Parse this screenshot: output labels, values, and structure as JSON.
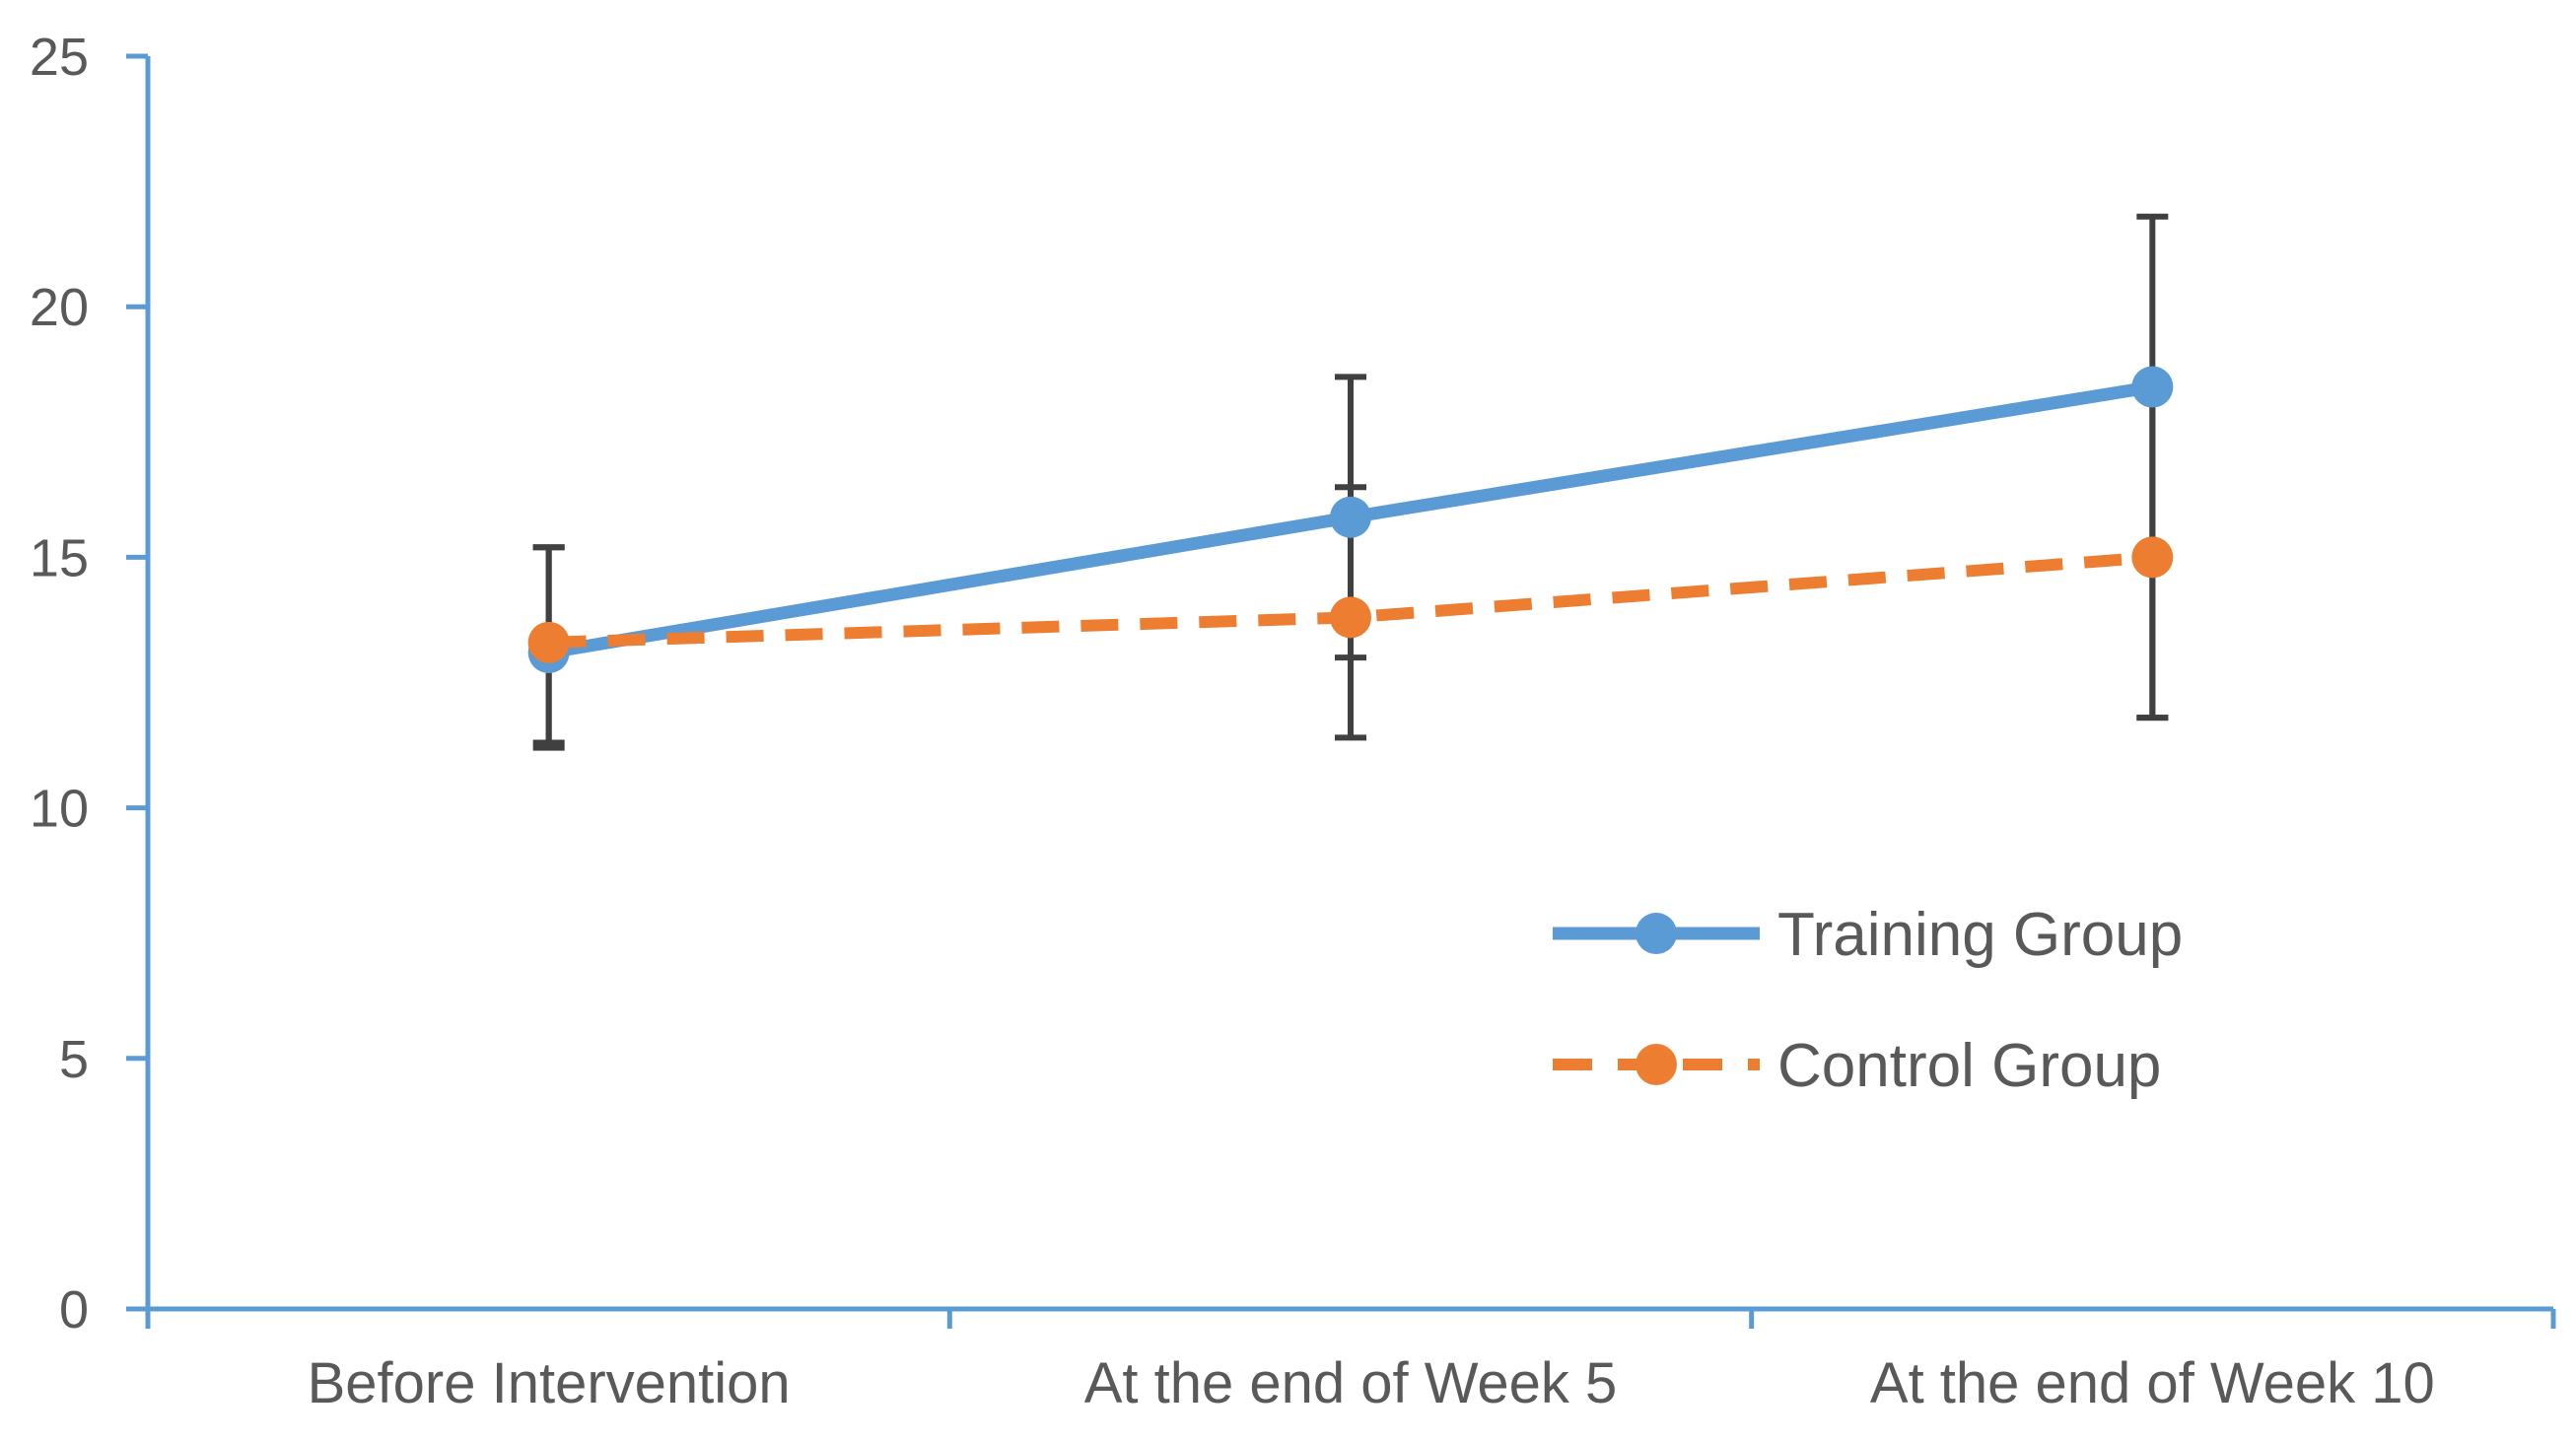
{
  "chart_data": {
    "type": "line",
    "title": "",
    "xlabel": "",
    "ylabel": "",
    "categories": [
      "Before Intervention",
      "At the end of Week 5",
      "At the end of Week 10"
    ],
    "ylim": [
      0,
      25
    ],
    "yticks": [
      "0",
      "5",
      "10",
      "15",
      "20",
      "25"
    ],
    "grid": false,
    "legend_position": "lower-right",
    "series": [
      {
        "name": "Training Group",
        "values": [
          13.1,
          15.8,
          18.4
        ],
        "error_low": [
          11.2,
          13.0,
          11.8
        ],
        "error_high": [
          15.2,
          18.6,
          21.8
        ],
        "color": "#5B9BD5",
        "style": "solid"
      },
      {
        "name": "Control Group",
        "values": [
          13.3,
          13.8,
          15.0
        ],
        "error_low": [
          11.3,
          11.4,
          11.8
        ],
        "error_high": [
          15.2,
          16.4,
          18.2
        ],
        "color": "#ED7D31",
        "style": "dashed"
      }
    ],
    "axis_color": "#5B9BD5",
    "errorbar_color": "#404040"
  }
}
